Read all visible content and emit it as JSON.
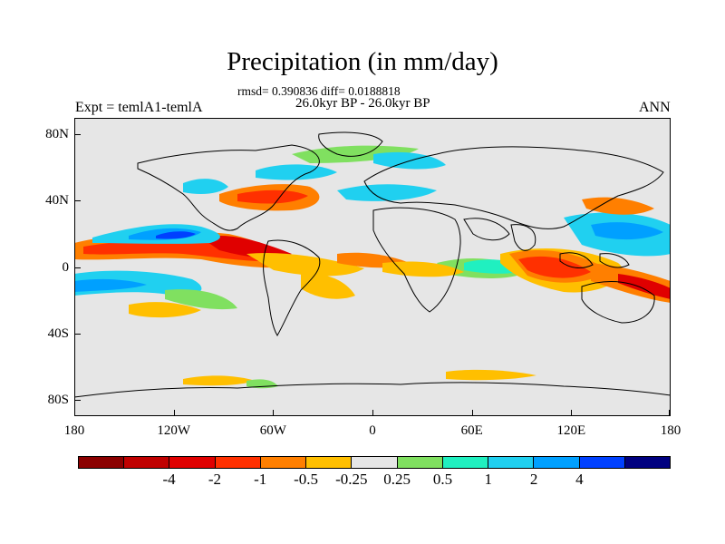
{
  "figure": {
    "title": "Precipitation (in mm/day)",
    "stats": "rmsd= 0.390836 diff= 0.0188818",
    "period": "26.0kyr BP - 26.0kyr BP",
    "experiment": "Expt = temlA1-temlA",
    "season": "ANN"
  },
  "map": {
    "projection": "cylindrical-equidistant",
    "lon_range": [
      -180,
      180
    ],
    "lat_range": [
      -90,
      90
    ],
    "background_color": "#e6e6e6",
    "lat_labels": [
      "80N",
      "40N",
      "0",
      "40S",
      "80S"
    ],
    "lat_values": [
      80,
      40,
      0,
      -40,
      -80
    ],
    "lon_labels": [
      "180",
      "120W",
      "60W",
      "0",
      "60E",
      "120E",
      "180"
    ],
    "lon_values": [
      -180,
      -120,
      -60,
      0,
      60,
      120,
      180
    ]
  },
  "colorbar": {
    "colors": [
      "#8b0000",
      "#c00000",
      "#e00000",
      "#ff3000",
      "#ff7f00",
      "#ffbf00",
      "#e6e6e6",
      "#80e060",
      "#20f0c0",
      "#20d0f0",
      "#00a0ff",
      "#0040ff",
      "#000080"
    ],
    "labels": [
      "-4",
      "-2",
      "-1",
      "-0.5",
      "-0.25",
      "0.25",
      "0.5",
      "1",
      "2",
      "4"
    ]
  }
}
